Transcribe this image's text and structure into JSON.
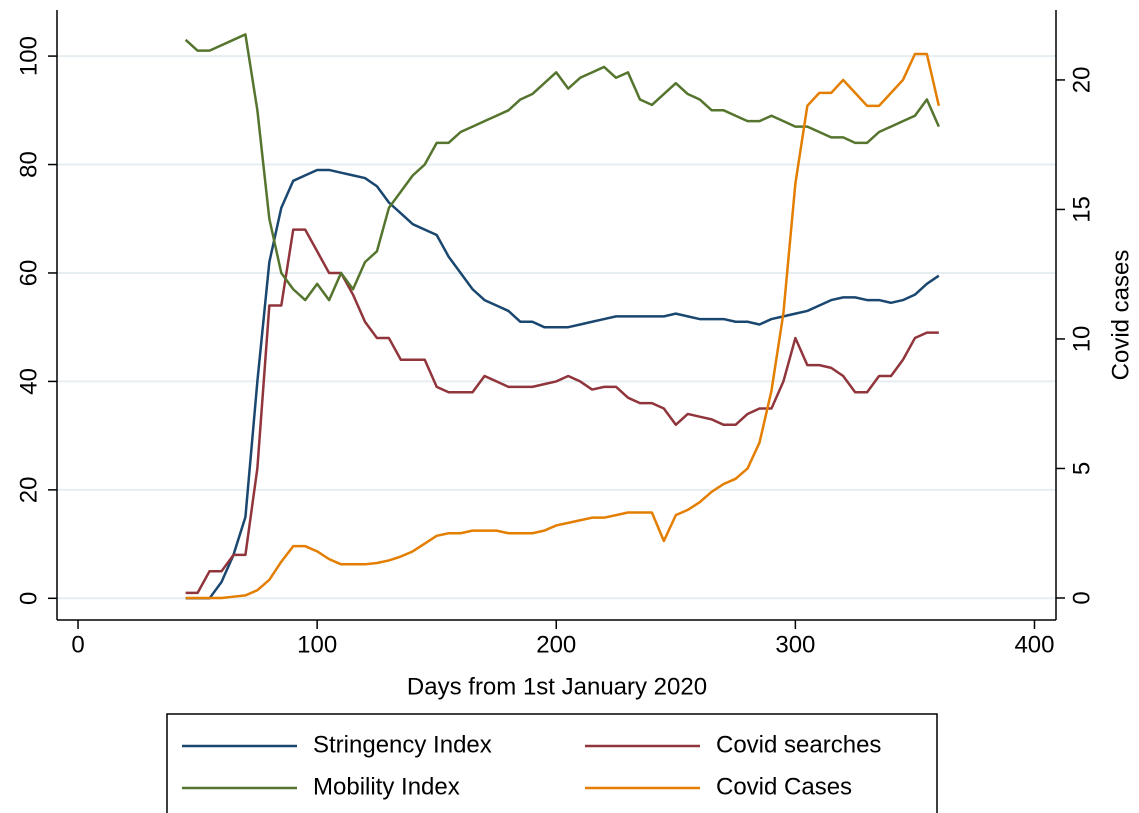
{
  "chart_data": {
    "type": "line",
    "x_label": "Days from 1st January 2020",
    "y2_label": "Covid cases",
    "x": [
      45,
      50,
      55,
      60,
      65,
      70,
      75,
      80,
      85,
      90,
      95,
      100,
      105,
      110,
      115,
      120,
      125,
      130,
      135,
      140,
      145,
      150,
      155,
      160,
      165,
      170,
      175,
      180,
      185,
      190,
      195,
      200,
      205,
      210,
      215,
      220,
      225,
      230,
      235,
      240,
      245,
      250,
      255,
      260,
      265,
      270,
      275,
      280,
      285,
      290,
      295,
      300,
      305,
      310,
      315,
      320,
      325,
      330,
      335,
      340,
      345,
      350,
      355,
      360
    ],
    "xlim": [
      -8.8,
      409
    ],
    "xticks": [
      0,
      100,
      200,
      300,
      400
    ],
    "ylim": [
      -4,
      108.5
    ],
    "yticks": [
      0,
      20,
      40,
      60,
      80,
      100
    ],
    "y2lim": [
      -0.85,
      22.7
    ],
    "y2ticks": [
      0,
      5,
      10,
      15,
      20
    ],
    "grid": true,
    "series": [
      {
        "name": "Stringency Index",
        "color": "#1a476f",
        "values": [
          0,
          0,
          0,
          3,
          8,
          15,
          40,
          62,
          72,
          77,
          78,
          79,
          79,
          78.5,
          78,
          77.5,
          76,
          73,
          71,
          69,
          68,
          67,
          63,
          60,
          57,
          55,
          54,
          53,
          51,
          51,
          50,
          50,
          50,
          50.5,
          51,
          51.5,
          52,
          52,
          52,
          52,
          52,
          52.5,
          52,
          51.5,
          51.5,
          51.5,
          51,
          51,
          50.5,
          51.5,
          52,
          52.5,
          53,
          54,
          55,
          55.5,
          55.5,
          55,
          55,
          54.5,
          55,
          56,
          58,
          59.5
        ]
      },
      {
        "name": "Covid searches",
        "color": "#90353b",
        "values": [
          1,
          1,
          5,
          5,
          8,
          8,
          24,
          54,
          54,
          68,
          68,
          64,
          60,
          60,
          56,
          51,
          48,
          48,
          44,
          44,
          44,
          39,
          38,
          38,
          38,
          41,
          40,
          39,
          39,
          39,
          39.5,
          40,
          41,
          40,
          38.5,
          39,
          39,
          37,
          36,
          36,
          35,
          32,
          34,
          33.5,
          33,
          32,
          32,
          34,
          35,
          35,
          40,
          48,
          43,
          43,
          42.5,
          41,
          38,
          38,
          41,
          41,
          44,
          48,
          49,
          49
        ]
      },
      {
        "name": "Mobility Index",
        "color": "#55752f",
        "values": [
          103,
          101,
          101,
          102,
          103,
          104,
          90,
          70,
          60,
          57,
          55,
          58,
          55,
          60,
          57,
          62,
          64,
          72,
          75,
          78,
          80,
          84,
          84,
          86,
          87,
          88,
          89,
          90,
          92,
          93,
          95,
          97,
          94,
          96,
          97,
          98,
          96,
          97,
          92,
          91,
          93,
          95,
          93,
          92,
          90,
          90,
          89,
          88,
          88,
          89,
          88,
          87,
          87,
          86,
          85,
          85,
          84,
          84,
          86,
          87,
          88,
          89,
          92,
          87
        ]
      },
      {
        "name": "Covid Cases",
        "color": "#e37e00",
        "axis": "y2",
        "values": [
          0,
          0,
          0,
          0,
          0.05,
          0.1,
          0.3,
          0.7,
          1.4,
          2,
          2,
          1.8,
          1.5,
          1.3,
          1.3,
          1.3,
          1.35,
          1.45,
          1.6,
          1.8,
          2.1,
          2.4,
          2.5,
          2.5,
          2.6,
          2.6,
          2.6,
          2.5,
          2.5,
          2.5,
          2.6,
          2.8,
          2.9,
          3,
          3.1,
          3.1,
          3.2,
          3.3,
          3.3,
          3.3,
          2.2,
          3.2,
          3.4,
          3.7,
          4.1,
          4.4,
          4.6,
          5,
          6,
          8,
          11,
          16,
          19,
          19.5,
          19.5,
          20,
          19.5,
          19,
          19,
          19.5,
          20,
          21,
          21,
          19
        ]
      }
    ]
  }
}
